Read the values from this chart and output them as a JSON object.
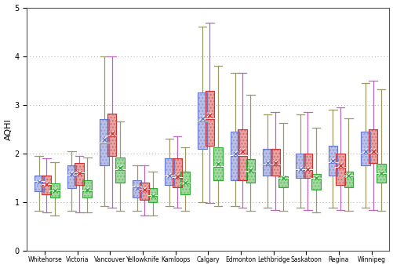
{
  "cities": [
    "Whitehorse",
    "Victoria",
    "Vancouver",
    "Yellowknife",
    "Kamloops",
    "Calgary",
    "Edmonton",
    "Lethbridge",
    "Saskatoon",
    "Regina",
    "Winnipeg"
  ],
  "ylabel": "AQHI",
  "ylim": [
    0,
    5
  ],
  "yticks": [
    0,
    1,
    2,
    3,
    4,
    5
  ],
  "colors": {
    "blue": "#6677cc",
    "red": "#cc3333",
    "green": "#33aa33"
  },
  "whisker_colors": {
    "blue": "#999966",
    "red": "#bb66bb",
    "green": "#999966"
  },
  "box_data": {
    "blue": {
      "whisker_low": [
        0.82,
        0.82,
        0.92,
        0.82,
        0.92,
        1.0,
        0.92,
        0.88,
        0.88,
        0.88,
        0.88
      ],
      "q1": [
        1.22,
        1.28,
        1.75,
        1.1,
        1.35,
        2.1,
        1.45,
        1.55,
        1.5,
        1.55,
        1.75
      ],
      "median": [
        1.42,
        1.55,
        2.2,
        1.3,
        1.52,
        2.65,
        1.95,
        1.75,
        1.65,
        1.8,
        2.0
      ],
      "q3": [
        1.55,
        1.75,
        2.7,
        1.45,
        1.9,
        3.25,
        2.45,
        2.1,
        2.0,
        2.15,
        2.45
      ],
      "whisker_high": [
        1.95,
        2.05,
        4.0,
        1.75,
        2.3,
        4.6,
        3.65,
        2.8,
        2.8,
        2.9,
        3.45
      ],
      "mean": [
        1.42,
        1.57,
        2.28,
        1.28,
        1.54,
        2.72,
        2.0,
        1.8,
        1.68,
        1.85,
        2.05
      ]
    },
    "red": {
      "whisker_low": [
        0.78,
        0.78,
        0.88,
        0.73,
        0.88,
        0.98,
        0.88,
        0.83,
        0.83,
        0.83,
        0.83
      ],
      "q1": [
        1.15,
        1.35,
        1.95,
        1.05,
        1.3,
        2.15,
        1.45,
        1.55,
        1.5,
        1.35,
        1.8
      ],
      "median": [
        1.35,
        1.6,
        2.35,
        1.25,
        1.5,
        2.7,
        1.95,
        1.75,
        1.65,
        1.7,
        2.0
      ],
      "q3": [
        1.55,
        1.8,
        2.82,
        1.4,
        1.9,
        3.28,
        2.5,
        2.1,
        2.0,
        2.0,
        2.5
      ],
      "whisker_high": [
        1.9,
        1.95,
        4.0,
        1.75,
        2.35,
        4.68,
        3.65,
        2.85,
        2.85,
        2.95,
        3.5
      ],
      "mean": [
        1.37,
        1.6,
        2.42,
        1.25,
        1.52,
        2.78,
        2.05,
        1.8,
        1.68,
        1.75,
        2.05
      ]
    },
    "green": {
      "whisker_low": [
        0.72,
        0.78,
        0.82,
        0.72,
        0.82,
        0.92,
        0.82,
        0.82,
        0.78,
        0.82,
        0.82
      ],
      "q1": [
        1.1,
        1.1,
        1.4,
        1.0,
        1.15,
        1.45,
        1.4,
        1.3,
        1.25,
        1.3,
        1.4
      ],
      "median": [
        1.22,
        1.22,
        1.65,
        1.12,
        1.38,
        1.72,
        1.62,
        1.48,
        1.48,
        1.52,
        1.58
      ],
      "q3": [
        1.38,
        1.45,
        1.92,
        1.28,
        1.62,
        2.12,
        1.88,
        1.52,
        1.58,
        1.62,
        1.78
      ],
      "whisker_high": [
        1.82,
        1.92,
        2.65,
        1.62,
        2.12,
        3.8,
        3.2,
        2.62,
        2.52,
        2.72,
        3.32
      ],
      "mean": [
        1.24,
        1.25,
        1.7,
        1.12,
        1.4,
        1.78,
        1.65,
        1.5,
        1.5,
        1.55,
        1.6
      ]
    }
  },
  "background_color": "#ffffff",
  "box_width": 0.28,
  "offsets": {
    "blue": -0.18,
    "red": 0.05,
    "green": 0.3
  },
  "figsize": [
    5.02,
    3.42
  ],
  "dpi": 100
}
